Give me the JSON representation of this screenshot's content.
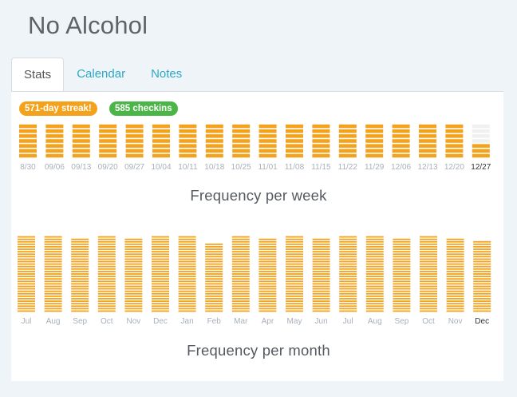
{
  "page": {
    "title": "No Alcohol"
  },
  "tabs": [
    {
      "label": "Stats",
      "active": true
    },
    {
      "label": "Calendar",
      "active": false
    },
    {
      "label": "Notes",
      "active": false
    }
  ],
  "badges": {
    "streak": "571-day streak!",
    "checkins": "585 checkins"
  },
  "colors": {
    "bar": "#f4a21b",
    "empty": "#f0f0f0",
    "streak_badge": "#f4a21b",
    "checkins_badge": "#4cb547",
    "tab_link": "#2ea8c6"
  },
  "chart_data": [
    {
      "type": "bar",
      "title": "Frequency per week",
      "categories": [
        "8/30",
        "09/06",
        "09/13",
        "09/20",
        "09/27",
        "10/04",
        "10/11",
        "10/18",
        "10/25",
        "11/01",
        "11/08",
        "11/15",
        "11/22",
        "11/29",
        "12/06",
        "12/13",
        "12/20",
        "12/27"
      ],
      "current_category": "12/27",
      "values": [
        7,
        7,
        7,
        7,
        7,
        7,
        7,
        7,
        7,
        7,
        7,
        7,
        7,
        7,
        7,
        7,
        7,
        3
      ],
      "ylim": [
        0,
        7
      ]
    },
    {
      "type": "bar",
      "title": "Frequency per month",
      "categories": [
        "Jul",
        "Aug",
        "Sep",
        "Oct",
        "Nov",
        "Dec",
        "Jan",
        "Feb",
        "Mar",
        "Apr",
        "May",
        "Jun",
        "Jul",
        "Aug",
        "Sep",
        "Oct",
        "Nov",
        "Dec"
      ],
      "current_category": "Dec",
      "values": [
        31,
        31,
        30,
        31,
        30,
        31,
        31,
        28,
        31,
        30,
        31,
        30,
        31,
        31,
        30,
        31,
        30,
        29
      ],
      "ylim": [
        0,
        31
      ]
    }
  ]
}
